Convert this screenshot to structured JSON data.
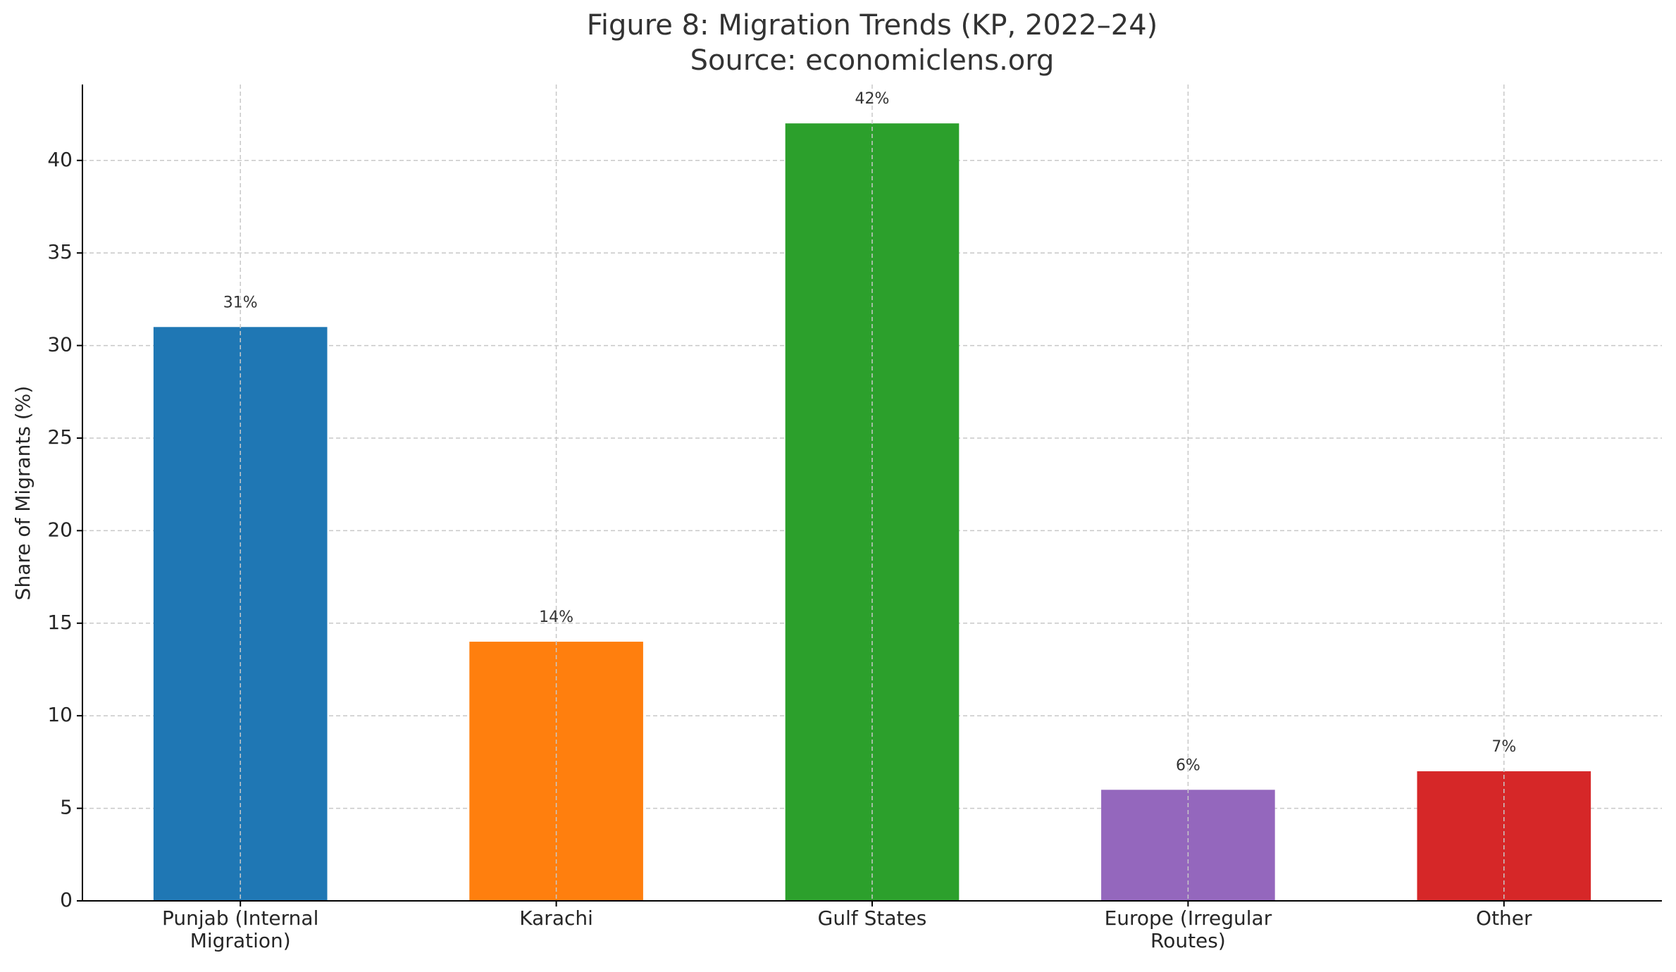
{
  "chart_data": {
    "type": "bar",
    "title": "Figure 8: Migration Trends (KP, 2022–24)",
    "subtitle": "Source: economiclens.org",
    "y_label": "Share of Migrants (%)",
    "categories": [
      "Punjab (Internal\nMigration)",
      "Karachi",
      "Gulf States",
      "Europe (Irregular\nRoutes)",
      "Other"
    ],
    "values": [
      31,
      14,
      42,
      6,
      7
    ],
    "value_labels": [
      "31%",
      "14%",
      "42%",
      "6%",
      "7%"
    ],
    "colors": [
      "#1f77b4",
      "#ff7f0e",
      "#2ca02c",
      "#9467bd",
      "#d62728"
    ],
    "ylim": [
      0,
      44.1
    ],
    "yticks": [
      0,
      5,
      10,
      15,
      20,
      25,
      30,
      35,
      40
    ],
    "grid": true
  }
}
